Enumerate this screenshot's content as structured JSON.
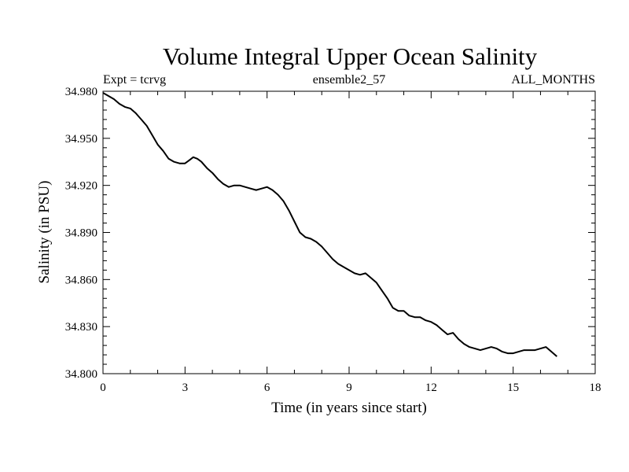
{
  "chart_data": {
    "type": "line",
    "title": "Volume Integral Upper Ocean Salinity",
    "subtitle_left": "Expt = tcrvg",
    "subtitle_center": "ensemble2_57",
    "subtitle_right": "ALL_MONTHS",
    "xlabel": "Time (in years since start)",
    "ylabel": "Salinity (in PSU)",
    "xlim": [
      0,
      18
    ],
    "ylim": [
      34.8,
      34.98
    ],
    "x_ticks": [
      0,
      3,
      6,
      9,
      12,
      15,
      18
    ],
    "x_tick_labels": [
      "0",
      "3",
      "6",
      "9",
      "12",
      "15",
      "18"
    ],
    "y_ticks": [
      34.8,
      34.83,
      34.86,
      34.89,
      34.92,
      34.95,
      34.98
    ],
    "y_tick_labels": [
      "34.800",
      "34.830",
      "34.860",
      "34.890",
      "34.920",
      "34.950",
      "34.980"
    ],
    "grid": false,
    "series": [
      {
        "name": "Salinity",
        "color": "#000000",
        "x": [
          0,
          0.2,
          0.4,
          0.6,
          0.8,
          1.0,
          1.2,
          1.4,
          1.6,
          1.8,
          2.0,
          2.2,
          2.4,
          2.6,
          2.8,
          3.0,
          3.15,
          3.3,
          3.45,
          3.6,
          3.8,
          4.0,
          4.2,
          4.4,
          4.6,
          4.8,
          5.0,
          5.2,
          5.4,
          5.6,
          5.8,
          6.0,
          6.2,
          6.4,
          6.6,
          6.8,
          7.0,
          7.2,
          7.4,
          7.6,
          7.8,
          8.0,
          8.2,
          8.4,
          8.6,
          8.8,
          9.0,
          9.2,
          9.4,
          9.6,
          9.8,
          10.0,
          10.2,
          10.4,
          10.6,
          10.8,
          11.0,
          11.2,
          11.4,
          11.6,
          11.8,
          12.0,
          12.2,
          12.4,
          12.6,
          12.8,
          13.0,
          13.2,
          13.4,
          13.6,
          13.8,
          14.0,
          14.2,
          14.4,
          14.6,
          14.8,
          15.0,
          15.2,
          15.4,
          15.6,
          15.8,
          16.0,
          16.2,
          16.4,
          16.6
        ],
        "y": [
          34.979,
          34.977,
          34.975,
          34.972,
          34.97,
          34.969,
          34.966,
          34.962,
          34.958,
          34.952,
          34.946,
          34.942,
          34.937,
          34.935,
          34.934,
          34.934,
          34.936,
          34.938,
          34.937,
          34.935,
          34.931,
          34.928,
          34.924,
          34.921,
          34.919,
          34.92,
          34.92,
          34.919,
          34.918,
          34.917,
          34.918,
          34.919,
          34.917,
          34.914,
          34.91,
          34.904,
          34.897,
          34.89,
          34.887,
          34.886,
          34.884,
          34.881,
          34.877,
          34.873,
          34.87,
          34.868,
          34.866,
          34.864,
          34.863,
          34.864,
          34.861,
          34.858,
          34.853,
          34.848,
          34.842,
          34.84,
          34.84,
          34.837,
          34.836,
          34.836,
          34.834,
          34.833,
          34.831,
          34.828,
          34.825,
          34.826,
          34.822,
          34.819,
          34.817,
          34.816,
          34.815,
          34.816,
          34.817,
          34.816,
          34.814,
          34.813,
          34.813,
          34.814,
          34.815,
          34.815,
          34.815,
          34.816,
          34.817,
          34.814,
          34.811
        ]
      }
    ]
  }
}
